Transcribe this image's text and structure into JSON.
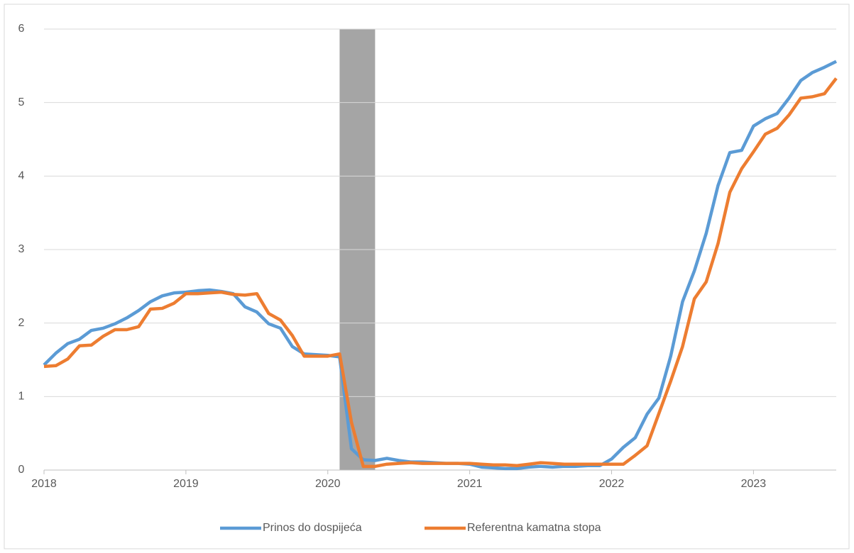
{
  "chart_data": {
    "type": "line",
    "categories": [
      "2018",
      null,
      null,
      null,
      null,
      null,
      null,
      null,
      null,
      null,
      null,
      null,
      "2019",
      null,
      null,
      null,
      null,
      null,
      null,
      null,
      null,
      null,
      null,
      null,
      "2020",
      null,
      null,
      null,
      null,
      null,
      null,
      null,
      null,
      null,
      null,
      null,
      "2021",
      null,
      null,
      null,
      null,
      null,
      null,
      null,
      null,
      null,
      null,
      null,
      "2022",
      null,
      null,
      null,
      null,
      null,
      null,
      null,
      null,
      null,
      null,
      null,
      "2023",
      null,
      null,
      null,
      null,
      null,
      null,
      null
    ],
    "series": [
      {
        "name": "Prinos do dospijeća",
        "color": "#5b9bd5",
        "values": [
          1.43,
          1.59,
          1.72,
          1.78,
          1.9,
          1.93,
          1.99,
          2.07,
          2.17,
          2.29,
          2.37,
          2.41,
          2.42,
          2.44,
          2.45,
          2.43,
          2.4,
          2.22,
          2.15,
          1.99,
          1.93,
          1.68,
          1.58,
          1.57,
          1.56,
          1.54,
          0.29,
          0.14,
          0.13,
          0.16,
          0.13,
          0.11,
          0.11,
          0.1,
          0.09,
          0.09,
          0.08,
          0.04,
          0.03,
          0.02,
          0.02,
          0.04,
          0.05,
          0.04,
          0.05,
          0.05,
          0.06,
          0.06,
          0.15,
          0.31,
          0.44,
          0.76,
          0.98,
          1.55,
          2.29,
          2.71,
          3.22,
          3.87,
          4.32,
          4.35,
          4.68,
          4.78,
          4.85,
          5.06,
          5.3,
          5.41,
          5.48,
          5.56
        ]
      },
      {
        "name": "Referentna kamatna stopa",
        "color": "#ed7d31",
        "values": [
          1.41,
          1.42,
          1.51,
          1.69,
          1.7,
          1.82,
          1.91,
          1.91,
          1.95,
          2.19,
          2.2,
          2.27,
          2.4,
          2.4,
          2.41,
          2.42,
          2.39,
          2.38,
          2.4,
          2.13,
          2.04,
          1.83,
          1.55,
          1.55,
          1.55,
          1.58,
          0.65,
          0.05,
          0.05,
          0.08,
          0.09,
          0.1,
          0.09,
          0.09,
          0.09,
          0.09,
          0.09,
          0.08,
          0.07,
          0.07,
          0.06,
          0.08,
          0.1,
          0.09,
          0.08,
          0.08,
          0.08,
          0.08,
          0.08,
          0.08,
          0.2,
          0.33,
          0.77,
          1.21,
          1.68,
          2.33,
          2.56,
          3.08,
          3.78,
          4.1,
          4.33,
          4.57,
          4.65,
          4.83,
          5.06,
          5.08,
          5.12,
          5.33
        ]
      }
    ],
    "shaded_x": [
      25,
      28
    ],
    "shade_color": "#a5a5a5",
    "ylim": [
      0,
      6
    ],
    "yticks": [
      0,
      1,
      2,
      3,
      4,
      5,
      6
    ],
    "grid": true,
    "legend": "bottom"
  }
}
